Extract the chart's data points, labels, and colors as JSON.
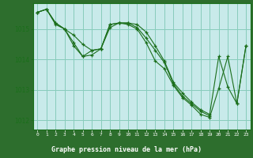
{
  "title": "Graphe pression niveau de la mer (hPa)",
  "background_color": "#c8eaea",
  "plot_bg_color": "#c8eaea",
  "bottom_bar_color": "#2d6e2d",
  "line_color": "#1a6e1a",
  "grid_color": "#88ccbb",
  "xlim": [
    -0.5,
    23.5
  ],
  "ylim": [
    1011.7,
    1015.85
  ],
  "yticks": [
    1012,
    1013,
    1014,
    1015
  ],
  "xticks": [
    0,
    1,
    2,
    3,
    4,
    5,
    6,
    7,
    8,
    9,
    10,
    11,
    12,
    13,
    14,
    15,
    16,
    17,
    18,
    19,
    20,
    21,
    22,
    23
  ],
  "series": [
    {
      "x": [
        0,
        1,
        2,
        3,
        4,
        5,
        6,
        7,
        8,
        9,
        10,
        11,
        12,
        13,
        14,
        15,
        16,
        17,
        18,
        19,
        20,
        21,
        22,
        23
      ],
      "y": [
        1015.55,
        1015.65,
        1015.2,
        1015.0,
        1014.8,
        1014.5,
        1014.3,
        1014.35,
        1015.15,
        1015.2,
        1015.2,
        1015.15,
        1014.9,
        1014.45,
        1013.95,
        1013.25,
        1012.9,
        1012.6,
        1012.35,
        1012.2,
        1014.1,
        1013.1,
        1012.55,
        1014.45
      ]
    },
    {
      "x": [
        0,
        1,
        2,
        3,
        4,
        5,
        6,
        7,
        8,
        9,
        10,
        11,
        12,
        13,
        14,
        15,
        16,
        17,
        18,
        19
      ],
      "y": [
        1015.55,
        1015.65,
        1015.2,
        1015.0,
        1014.55,
        1014.1,
        1014.15,
        1014.35,
        1015.15,
        1015.2,
        1015.2,
        1015.05,
        1014.7,
        1014.3,
        1013.9,
        1013.2,
        1012.8,
        1012.55,
        1012.3,
        1012.15
      ]
    },
    {
      "x": [
        0,
        1,
        2,
        3,
        4,
        5,
        6,
        7,
        8,
        9,
        10,
        11,
        12,
        13,
        14,
        15,
        16,
        17,
        18,
        19,
        20,
        21,
        22,
        23
      ],
      "y": [
        1015.55,
        1015.65,
        1015.15,
        1015.0,
        1014.45,
        1014.1,
        1014.3,
        1014.35,
        1015.05,
        1015.2,
        1015.15,
        1015.0,
        1014.55,
        1013.95,
        1013.7,
        1013.15,
        1012.75,
        1012.5,
        1012.2,
        1012.1,
        1013.05,
        1014.1,
        1012.55,
        1014.45
      ]
    }
  ]
}
